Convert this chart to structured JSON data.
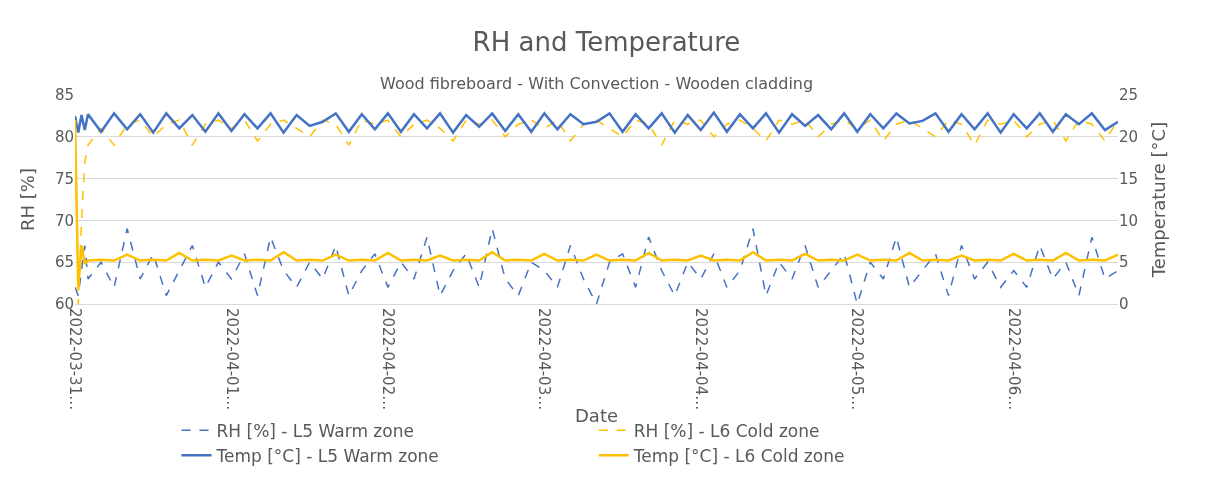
{
  "chart_data": {
    "type": "line",
    "title": "RH and Temperature",
    "subtitle": "Wood fibreboard - With Convection - Wooden cladding",
    "xlabel": "Date",
    "ylabel": "RH [%]",
    "y2label": "Temperature [°C]",
    "x": [
      "2022-03-31T00:00",
      "2022-03-31T00:30",
      "2022-03-31T01:00",
      "2022-03-31T01:30",
      "2022-03-31T02:00",
      "2022-03-31T04:00",
      "2022-03-31T06:00",
      "2022-03-31T08:00",
      "2022-03-31T10:00",
      "2022-03-31T12:00",
      "2022-03-31T14:00",
      "2022-03-31T16:00",
      "2022-03-31T18:00",
      "2022-03-31T20:00",
      "2022-03-31T22:00",
      "2022-04-01T00:00",
      "2022-04-01T02:00",
      "2022-04-01T04:00",
      "2022-04-01T06:00",
      "2022-04-01T08:00",
      "2022-04-01T10:00",
      "2022-04-01T12:00",
      "2022-04-01T14:00",
      "2022-04-01T16:00",
      "2022-04-01T18:00",
      "2022-04-01T20:00",
      "2022-04-01T22:00",
      "2022-04-02T00:00",
      "2022-04-02T02:00",
      "2022-04-02T04:00",
      "2022-04-02T06:00",
      "2022-04-02T08:00",
      "2022-04-02T10:00",
      "2022-04-02T12:00",
      "2022-04-02T14:00",
      "2022-04-02T16:00",
      "2022-04-02T18:00",
      "2022-04-02T20:00",
      "2022-04-02T22:00",
      "2022-04-03T00:00",
      "2022-04-03T02:00",
      "2022-04-03T04:00",
      "2022-04-03T06:00",
      "2022-04-03T08:00",
      "2022-04-03T10:00",
      "2022-04-03T12:00",
      "2022-04-03T14:00",
      "2022-04-03T16:00",
      "2022-04-03T18:00",
      "2022-04-03T20:00",
      "2022-04-03T22:00",
      "2022-04-04T00:00",
      "2022-04-04T02:00",
      "2022-04-04T04:00",
      "2022-04-04T06:00",
      "2022-04-04T08:00",
      "2022-04-04T10:00",
      "2022-04-04T12:00",
      "2022-04-04T14:00",
      "2022-04-04T16:00",
      "2022-04-04T18:00",
      "2022-04-04T20:00",
      "2022-04-04T22:00",
      "2022-04-05T00:00",
      "2022-04-05T02:00",
      "2022-04-05T04:00",
      "2022-04-05T06:00",
      "2022-04-05T08:00",
      "2022-04-05T10:00",
      "2022-04-05T12:00",
      "2022-04-05T14:00",
      "2022-04-05T16:00",
      "2022-04-05T18:00",
      "2022-04-05T20:00",
      "2022-04-05T22:00",
      "2022-04-06T00:00",
      "2022-04-06T02:00",
      "2022-04-06T04:00",
      "2022-04-06T06:00",
      "2022-04-06T08:00",
      "2022-04-06T10:00",
      "2022-04-06T12:00",
      "2022-04-06T14:00",
      "2022-04-06T16:00"
    ],
    "xlim": [
      "2022-03-31T00:00",
      "2022-04-06T16:00"
    ],
    "xticks": [
      {
        "value": "2022-03-31",
        "label": "2022-03-31…"
      },
      {
        "value": "2022-04-01",
        "label": "2022-04-01…"
      },
      {
        "value": "2022-04-02",
        "label": "2022-04-02…"
      },
      {
        "value": "2022-04-03",
        "label": "2022-04-03…"
      },
      {
        "value": "2022-04-04",
        "label": "2022-04-04…"
      },
      {
        "value": "2022-04-05",
        "label": "2022-04-05…"
      },
      {
        "value": "2022-04-06",
        "label": "2022-04-06…"
      }
    ],
    "ylim": [
      60,
      85
    ],
    "yticks": [
      60,
      65,
      70,
      75,
      80,
      85
    ],
    "y2lim": [
      0,
      25
    ],
    "y2ticks": [
      0,
      5,
      10,
      15,
      20,
      25
    ],
    "grid": "y",
    "legend": "bottom",
    "series": [
      {
        "name": "RH [%] - L5 Warm zone",
        "color": "#4472c4",
        "line_style": "dashed",
        "values": [
          62,
          61,
          64,
          67,
          63,
          65,
          62,
          69,
          63,
          66,
          61,
          64,
          67,
          62,
          65,
          63,
          66,
          61,
          68,
          64,
          62,
          65,
          63,
          67,
          61,
          64,
          66,
          62,
          65,
          63,
          68,
          61,
          64,
          66,
          62,
          69,
          63,
          61,
          65,
          64,
          62,
          67,
          63,
          60,
          65,
          66,
          62,
          68,
          64,
          61,
          65,
          63,
          66,
          62,
          64,
          69,
          61,
          65,
          63,
          67,
          62,
          64,
          66,
          60,
          65,
          63,
          68,
          62,
          64,
          66,
          61,
          67,
          63,
          65,
          62,
          64,
          62,
          67,
          63,
          65,
          61,
          68,
          63,
          64
        ]
      },
      {
        "name": "RH [%] - L6 Cold zone",
        "color": "#ffc000",
        "line_style": "dashed",
        "values": [
          82,
          60,
          70,
          77,
          79,
          81,
          79,
          81.5,
          82,
          80,
          81.5,
          82,
          79,
          81.5,
          82,
          81,
          82,
          79.5,
          81.5,
          82,
          81,
          80,
          82,
          81.5,
          79,
          82,
          81.5,
          82,
          80,
          81.5,
          82,
          81,
          79.5,
          82,
          81.5,
          82,
          80,
          81.5,
          82,
          81,
          82,
          79.5,
          81.5,
          82,
          81,
          80,
          82,
          81.5,
          79,
          82,
          81.5,
          82,
          80,
          81.5,
          82,
          81,
          79.5,
          82,
          81.5,
          82,
          80,
          81.5,
          82,
          81,
          82,
          79.5,
          81.5,
          82,
          81,
          80,
          82,
          81.5,
          79,
          82,
          81.5,
          82,
          80,
          81.5,
          82,
          79.5,
          82,
          81.5,
          79.5,
          82
        ]
      },
      {
        "name": "Temp [°C] - L5 Warm zone",
        "color": "#4472c4",
        "line_style": "solid",
        "axis": "y2",
        "values": [
          22.5,
          20.5,
          22.6,
          20.8,
          22.7,
          20.6,
          22.8,
          20.9,
          22.7,
          20.5,
          22.8,
          21,
          22.6,
          20.6,
          22.8,
          20.7,
          22.7,
          21,
          22.8,
          20.5,
          22.6,
          21.3,
          21.8,
          22.8,
          20.6,
          22.7,
          20.9,
          22.8,
          20.6,
          22.7,
          21,
          22.8,
          20.5,
          22.6,
          21.2,
          22.8,
          20.7,
          22.7,
          20.6,
          22.8,
          20.9,
          22.7,
          21.5,
          21.8,
          22.8,
          20.6,
          22.7,
          21,
          22.8,
          20.5,
          22.6,
          20.8,
          22.9,
          20.6,
          22.7,
          21,
          22.8,
          20.5,
          22.7,
          21.3,
          22.6,
          20.9,
          22.8,
          20.6,
          22.7,
          21,
          22.8,
          21.6,
          21.9,
          22.8,
          20.6,
          22.7,
          20.9,
          22.8,
          20.5,
          22.7,
          21,
          22.8,
          20.6,
          22.7,
          21.5,
          22.8,
          20.8,
          21.8
        ]
      },
      {
        "name": "Temp [°C] - L6 Cold zone",
        "color": "#ffc000",
        "line_style": "solid",
        "axis": "y2",
        "values": [
          22,
          2,
          7,
          4.8,
          5.2,
          5.3,
          5.2,
          5.9,
          5.2,
          5.3,
          5.2,
          6.1,
          5.2,
          5.3,
          5.2,
          5.8,
          5.2,
          5.3,
          5.2,
          6.2,
          5.2,
          5.3,
          5.2,
          5.9,
          5.2,
          5.3,
          5.2,
          6.1,
          5.2,
          5.3,
          5.2,
          5.8,
          5.2,
          5.3,
          5.2,
          6.2,
          5.2,
          5.3,
          5.2,
          6,
          5.2,
          5.3,
          5.2,
          5.9,
          5.2,
          5.3,
          5.2,
          6.1,
          5.2,
          5.3,
          5.2,
          5.8,
          5.2,
          5.3,
          5.2,
          6.2,
          5.2,
          5.3,
          5.2,
          6,
          5.2,
          5.3,
          5.2,
          5.9,
          5.2,
          5.3,
          5.2,
          6.1,
          5.2,
          5.3,
          5.2,
          5.8,
          5.2,
          5.3,
          5.2,
          6,
          5.2,
          5.3,
          5.2,
          6.1,
          5.2,
          5.3,
          5.2,
          5.9
        ]
      }
    ]
  }
}
